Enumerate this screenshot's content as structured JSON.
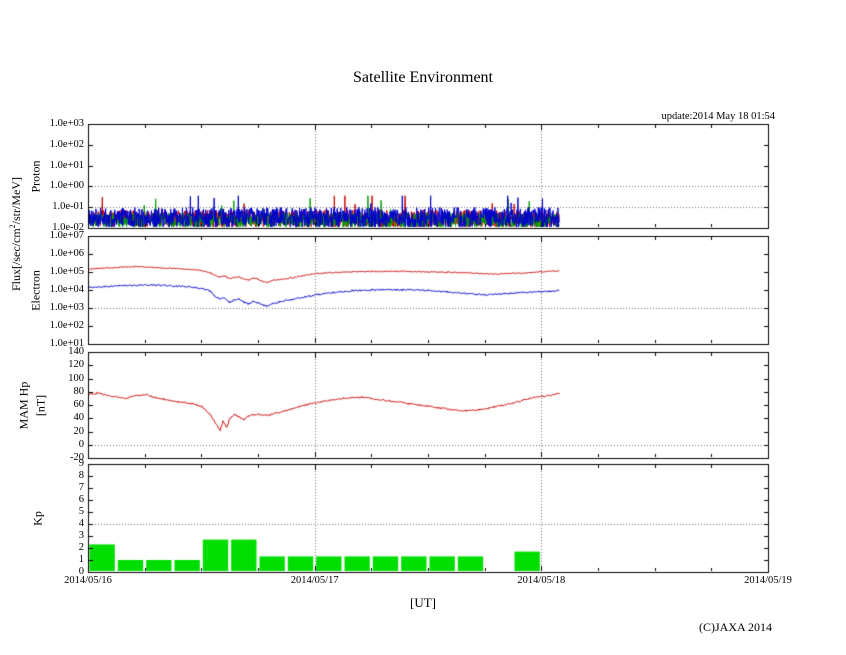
{
  "chart_data": {
    "type": "line",
    "title": "Satellite Environment",
    "update_label": "update:2014 May 18 01:54",
    "xlabel": "[UT]",
    "copyright": "(C)JAXA 2014",
    "flux_label": {
      "pre": "Flux[/sec/cm",
      "sup": "2",
      "post": "/str/MeV]"
    },
    "x_axis": {
      "tick_labels": [
        "2014/05/16",
        "2014/05/17",
        "2014/05/18",
        "2014/05/19"
      ],
      "range_hours": [
        0,
        72
      ],
      "major_tick_hours": 24,
      "minor_tick_hours": 6
    },
    "data_end_hour": 49.9,
    "panels": [
      {
        "id": "proton",
        "ylabel": "Proton",
        "scale": "log",
        "ticks": [
          "1.0e+03",
          "1.0e+02",
          "1.0e+01",
          "1.0e+00",
          "1.0e-01",
          "1.0e-02"
        ],
        "tick_values": [
          3,
          2,
          1,
          0,
          -1,
          -2
        ],
        "hgrid": [
          0,
          -1
        ],
        "series": [
          {
            "name": "proton-channel-red",
            "color": "#cc0000",
            "kind": "noise",
            "base": -1.55,
            "amp": 0.42,
            "seed": 7
          },
          {
            "name": "proton-channel-green",
            "color": "#009900",
            "kind": "noise",
            "base": -1.62,
            "amp": 0.36,
            "seed": 13
          },
          {
            "name": "proton-channel-blue",
            "color": "#0000cc",
            "kind": "noise",
            "base": -1.5,
            "amp": 0.5,
            "seed": 21
          }
        ]
      },
      {
        "id": "electron",
        "ylabel": "Electron",
        "scale": "log",
        "ticks": [
          "1.0e+07",
          "1.0e+06",
          "1.0e+05",
          "1.0e+04",
          "1.0e+03",
          "1.0e+02",
          "1.0e+01"
        ],
        "tick_values": [
          7,
          6,
          5,
          4,
          3,
          2,
          1
        ],
        "hgrid": [
          3
        ],
        "series": [
          {
            "name": "electron-high",
            "color": "#cc0000",
            "kind": "points",
            "jitter": 0.03,
            "seed": 44,
            "points": [
              [
                0,
                5.15
              ],
              [
                1,
                5.2
              ],
              [
                2,
                5.22
              ],
              [
                3,
                5.25
              ],
              [
                4,
                5.28
              ],
              [
                5,
                5.3
              ],
              [
                6,
                5.28
              ],
              [
                7,
                5.25
              ],
              [
                8,
                5.22
              ],
              [
                9,
                5.2
              ],
              [
                10,
                5.17
              ],
              [
                11,
                5.13
              ],
              [
                12,
                5.08
              ],
              [
                13,
                4.95
              ],
              [
                13.5,
                4.8
              ],
              [
                14,
                4.72
              ],
              [
                14.4,
                4.8
              ],
              [
                15,
                4.62
              ],
              [
                15.5,
                4.7
              ],
              [
                16,
                4.73
              ],
              [
                16.5,
                4.62
              ],
              [
                17,
                4.56
              ],
              [
                17.5,
                4.66
              ],
              [
                18,
                4.6
              ],
              [
                18.5,
                4.47
              ],
              [
                19,
                4.42
              ],
              [
                19.5,
                4.52
              ],
              [
                20,
                4.56
              ],
              [
                21,
                4.62
              ],
              [
                22,
                4.72
              ],
              [
                23,
                4.82
              ],
              [
                24,
                4.9
              ],
              [
                25,
                4.94
              ],
              [
                26,
                4.97
              ],
              [
                28,
                5.01
              ],
              [
                30,
                5.03
              ],
              [
                32,
                5.04
              ],
              [
                34,
                5.03
              ],
              [
                36,
                5.01
              ],
              [
                38,
                4.99
              ],
              [
                40,
                4.96
              ],
              [
                42,
                4.91
              ],
              [
                43,
                4.89
              ],
              [
                44,
                4.9
              ],
              [
                45,
                4.93
              ],
              [
                46,
                4.95
              ],
              [
                47,
                4.98
              ],
              [
                48,
                5.01
              ],
              [
                49,
                5.04
              ],
              [
                49.9,
                5.06
              ]
            ]
          },
          {
            "name": "electron-low",
            "color": "#0000cc",
            "kind": "points",
            "jitter": 0.045,
            "seed": 55,
            "points": [
              [
                0,
                4.15
              ],
              [
                2,
                4.2
              ],
              [
                4,
                4.25
              ],
              [
                6,
                4.28
              ],
              [
                8,
                4.26
              ],
              [
                10,
                4.2
              ],
              [
                12,
                4.1
              ],
              [
                13,
                3.92
              ],
              [
                13.5,
                3.62
              ],
              [
                14,
                3.48
              ],
              [
                14.4,
                3.58
              ],
              [
                15,
                3.32
              ],
              [
                15.5,
                3.46
              ],
              [
                16,
                3.52
              ],
              [
                16.5,
                3.32
              ],
              [
                17,
                3.22
              ],
              [
                17.5,
                3.36
              ],
              [
                18,
                3.3
              ],
              [
                18.5,
                3.16
              ],
              [
                19,
                3.1
              ],
              [
                19.5,
                3.22
              ],
              [
                20,
                3.3
              ],
              [
                21,
                3.42
              ],
              [
                22,
                3.52
              ],
              [
                23,
                3.62
              ],
              [
                24,
                3.72
              ],
              [
                25,
                3.8
              ],
              [
                26,
                3.86
              ],
              [
                28,
                3.96
              ],
              [
                30,
                4.0
              ],
              [
                32,
                4.02
              ],
              [
                34,
                4.01
              ],
              [
                36,
                3.98
              ],
              [
                38,
                3.9
              ],
              [
                40,
                3.8
              ],
              [
                41,
                3.76
              ],
              [
                42,
                3.73
              ],
              [
                43,
                3.76
              ],
              [
                44,
                3.8
              ],
              [
                45,
                3.83
              ],
              [
                46,
                3.86
              ],
              [
                47,
                3.88
              ],
              [
                48,
                3.91
              ],
              [
                49,
                3.93
              ],
              [
                49.9,
                3.96
              ]
            ]
          }
        ]
      },
      {
        "id": "mam-hp",
        "ylabel": "MAM Hp",
        "ylabel2": "[nT]",
        "scale": "linear",
        "ticks": [
          "140",
          "120",
          "100",
          "80",
          "60",
          "40",
          "20",
          "0",
          "-20"
        ],
        "tick_values": [
          140,
          120,
          100,
          80,
          60,
          40,
          20,
          0,
          -20
        ],
        "hgrid": [
          0
        ],
        "series": [
          {
            "name": "hp",
            "color": "#cc0000",
            "kind": "points",
            "jitter": 1.2,
            "seed": 66,
            "points": [
              [
                0,
                76
              ],
              [
                1,
                78
              ],
              [
                2,
                75
              ],
              [
                3,
                72
              ],
              [
                4,
                70
              ],
              [
                5,
                74
              ],
              [
                6,
                76
              ],
              [
                7,
                72
              ],
              [
                8,
                69
              ],
              [
                9,
                66
              ],
              [
                10,
                64
              ],
              [
                11,
                62
              ],
              [
                12,
                58
              ],
              [
                12.5,
                52
              ],
              [
                13,
                45
              ],
              [
                13.5,
                32
              ],
              [
                14,
                22
              ],
              [
                14.3,
                36
              ],
              [
                14.7,
                26
              ],
              [
                15,
                40
              ],
              [
                15.5,
                46
              ],
              [
                16,
                42
              ],
              [
                16.5,
                38
              ],
              [
                17,
                44
              ],
              [
                18,
                46
              ],
              [
                19,
                44
              ],
              [
                20,
                48
              ],
              [
                21,
                52
              ],
              [
                22,
                56
              ],
              [
                23,
                60
              ],
              [
                24,
                63
              ],
              [
                25,
                66
              ],
              [
                26,
                68
              ],
              [
                27,
                70
              ],
              [
                28,
                71
              ],
              [
                29,
                72
              ],
              [
                30,
                70
              ],
              [
                31,
                68
              ],
              [
                32,
                66
              ],
              [
                33,
                64
              ],
              [
                34,
                62
              ],
              [
                35,
                60
              ],
              [
                36,
                58
              ],
              [
                37,
                56
              ],
              [
                38,
                54
              ],
              [
                39,
                52
              ],
              [
                40,
                51
              ],
              [
                41,
                52
              ],
              [
                42,
                54
              ],
              [
                43,
                57
              ],
              [
                44,
                60
              ],
              [
                45,
                63
              ],
              [
                46,
                67
              ],
              [
                47,
                71
              ],
              [
                48,
                73
              ],
              [
                49,
                74
              ],
              [
                49.9,
                78
              ]
            ]
          }
        ]
      },
      {
        "id": "kp",
        "ylabel": "Kp",
        "scale": "linear",
        "ticks": [
          "9",
          "8",
          "7",
          "6",
          "5",
          "4",
          "3",
          "2",
          "1",
          "0"
        ],
        "tick_values": [
          9,
          8,
          7,
          6,
          5,
          4,
          3,
          2,
          1,
          0
        ],
        "hgrid": [
          4
        ],
        "bars": {
          "name": "kp-bars",
          "color": "#00dd00",
          "interval_hours": 3,
          "values": [
            2.3,
            1,
            1,
            1,
            2.7,
            2.7,
            1.3,
            1.3,
            1.3,
            1.3,
            1.3,
            1.3,
            1.3,
            1.3,
            0,
            1.7
          ]
        }
      }
    ]
  }
}
